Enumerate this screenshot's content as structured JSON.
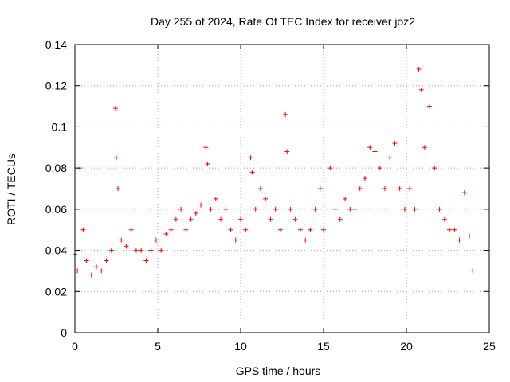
{
  "chart_data": {
    "type": "scatter",
    "title": "Day 255 of 2024, Rate Of TEC Index for receiver joz2",
    "xlabel": "GPS time / hours",
    "ylabel": "ROTI / TECUs",
    "xlim": [
      0,
      25
    ],
    "ylim": [
      0,
      0.14
    ],
    "x_ticks": [
      "0",
      "5",
      "10",
      "15",
      "20",
      "25"
    ],
    "y_ticks": [
      "0",
      "0.02",
      "0.04",
      "0.06",
      "0.08",
      "0.1",
      "0.12",
      "0.14"
    ],
    "grid": true,
    "marker": "+",
    "series": [
      {
        "name": "ROTI",
        "color": "#ff0000",
        "x": [
          0.0,
          0.15,
          0.3,
          0.5,
          0.7,
          1.0,
          1.3,
          1.6,
          1.9,
          2.2,
          2.45,
          2.5,
          2.6,
          2.8,
          3.1,
          3.4,
          3.7,
          4.0,
          4.3,
          4.6,
          4.9,
          5.2,
          5.5,
          5.8,
          6.1,
          6.4,
          6.7,
          7.0,
          7.3,
          7.6,
          7.9,
          8.0,
          8.2,
          8.5,
          8.8,
          9.1,
          9.4,
          9.7,
          10.0,
          10.3,
          10.6,
          10.7,
          10.9,
          11.2,
          11.5,
          11.8,
          12.1,
          12.4,
          12.7,
          12.8,
          13.0,
          13.3,
          13.6,
          13.9,
          14.2,
          14.5,
          14.8,
          15.0,
          15.4,
          15.7,
          16.0,
          16.3,
          16.6,
          16.9,
          17.2,
          17.5,
          17.8,
          18.1,
          18.4,
          18.7,
          19.0,
          19.3,
          19.6,
          19.9,
          20.2,
          20.5,
          20.75,
          20.9,
          21.1,
          21.4,
          21.7,
          22.0,
          22.3,
          22.6,
          22.9,
          23.2,
          23.5,
          23.8,
          24.0
        ],
        "y": [
          0.038,
          0.03,
          0.08,
          0.05,
          0.035,
          0.028,
          0.032,
          0.03,
          0.035,
          0.04,
          0.109,
          0.085,
          0.07,
          0.045,
          0.042,
          0.05,
          0.04,
          0.04,
          0.035,
          0.04,
          0.045,
          0.04,
          0.048,
          0.05,
          0.055,
          0.06,
          0.05,
          0.055,
          0.058,
          0.062,
          0.09,
          0.082,
          0.06,
          0.065,
          0.055,
          0.06,
          0.05,
          0.045,
          0.055,
          0.05,
          0.085,
          0.078,
          0.06,
          0.07,
          0.065,
          0.055,
          0.06,
          0.05,
          0.106,
          0.088,
          0.06,
          0.055,
          0.05,
          0.045,
          0.05,
          0.06,
          0.07,
          0.05,
          0.08,
          0.06,
          0.055,
          0.065,
          0.06,
          0.06,
          0.07,
          0.075,
          0.09,
          0.088,
          0.08,
          0.07,
          0.085,
          0.092,
          0.07,
          0.06,
          0.07,
          0.06,
          0.128,
          0.118,
          0.09,
          0.11,
          0.08,
          0.06,
          0.055,
          0.05,
          0.05,
          0.045,
          0.068,
          0.047,
          0.03
        ]
      }
    ]
  }
}
